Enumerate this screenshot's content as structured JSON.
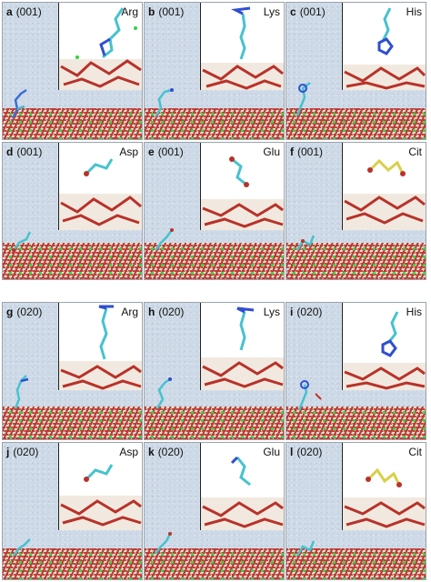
{
  "panels": [
    {
      "letter": "a",
      "facet": "(001)",
      "aa": "Arg"
    },
    {
      "letter": "b",
      "facet": "(001)",
      "aa": "Lys"
    },
    {
      "letter": "c",
      "facet": "(001)",
      "aa": "His"
    },
    {
      "letter": "d",
      "facet": "(001)",
      "aa": "Asp"
    },
    {
      "letter": "e",
      "facet": "(001)",
      "aa": "Glu"
    },
    {
      "letter": "f",
      "facet": "(001)",
      "aa": "Cit"
    },
    {
      "letter": "g",
      "facet": "(020)",
      "aa": "Arg"
    },
    {
      "letter": "h",
      "facet": "(020)",
      "aa": "Lys"
    },
    {
      "letter": "i",
      "facet": "(020)",
      "aa": "His"
    },
    {
      "letter": "j",
      "facet": "(020)",
      "aa": "Asp"
    },
    {
      "letter": "k",
      "facet": "(020)",
      "aa": "Glu"
    },
    {
      "letter": "l",
      "facet": "(020)",
      "aa": "Cit"
    }
  ]
}
